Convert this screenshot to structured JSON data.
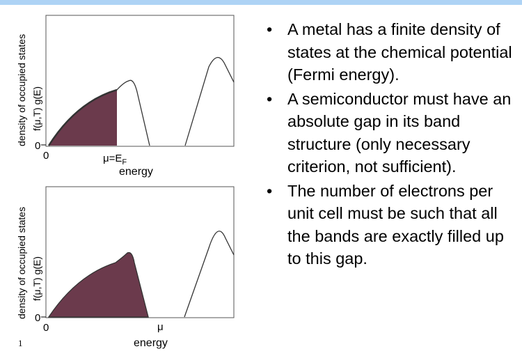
{
  "slide": {
    "bullets": [
      {
        "text": "A metal has a finite density of states at the chemical potential (Fermi energy)."
      },
      {
        "text": "A semiconductor must have an absolute gap in its band structure (only necessary criterion, not sufficient)."
      },
      {
        "text": "The number of electrons per unit cell must be such that all the bands are exactly filled up to this gap."
      }
    ],
    "bullet_glyph": "•",
    "slide_number": "1"
  },
  "top_plot": {
    "ylabel_outer": "density of occupied states",
    "ylabel_inner": "f(μ,T) g(E)",
    "y_zero_label": "0",
    "x_zero_label": "0",
    "mu_label_main": "μ=E",
    "mu_label_sub": "F",
    "xlabel": "energy"
  },
  "bottom_plot": {
    "ylabel_outer": "density of occupied states",
    "ylabel_inner": "f(μ,T) g(E)",
    "y_zero_label": "0",
    "x_zero_label": "0",
    "mu_label": "μ",
    "xlabel": "energy"
  },
  "colors": {
    "fill": "#6b3a4c",
    "curve": "#333333",
    "topbar": "#aed3f5"
  }
}
